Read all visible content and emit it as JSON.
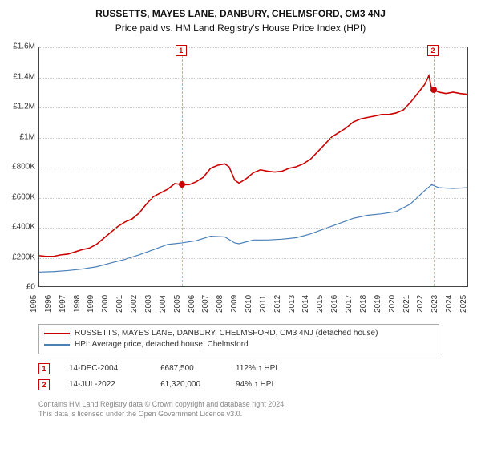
{
  "title": "RUSSETTS, MAYES LANE, DANBURY, CHELMSFORD, CM3 4NJ",
  "subtitle": "Price paid vs. HM Land Registry's House Price Index (HPI)",
  "chart": {
    "type": "line",
    "background_color": "#ffffff",
    "grid_color": "#cccccc",
    "axis_color": "#444444",
    "title_fontsize": 12,
    "label_fontsize": 10,
    "ylim": [
      0,
      1600000
    ],
    "ytick_step": 200000,
    "y_ticks": [
      "£0",
      "£200K",
      "£400K",
      "£600K",
      "£800K",
      "£1M",
      "£1.2M",
      "£1.4M",
      "£1.6M"
    ],
    "xlim": [
      1995,
      2025
    ],
    "x_ticks": [
      1995,
      1996,
      1997,
      1998,
      1999,
      2000,
      2001,
      2002,
      2003,
      2004,
      2005,
      2006,
      2007,
      2008,
      2009,
      2010,
      2011,
      2012,
      2013,
      2014,
      2015,
      2016,
      2017,
      2018,
      2019,
      2020,
      2021,
      2022,
      2023,
      2024,
      2025
    ],
    "series": [
      {
        "name": "subject",
        "label": "RUSSETTS, MAYES LANE, DANBURY, CHELMSFORD, CM3 4NJ (detached house)",
        "color": "#cc0000",
        "line_width": 1.6,
        "data": [
          [
            1995,
            205000
          ],
          [
            1995.5,
            200000
          ],
          [
            1996,
            200000
          ],
          [
            1996.5,
            210000
          ],
          [
            1997,
            215000
          ],
          [
            1997.5,
            230000
          ],
          [
            1998,
            245000
          ],
          [
            1998.5,
            255000
          ],
          [
            1999,
            280000
          ],
          [
            1999.5,
            320000
          ],
          [
            2000,
            360000
          ],
          [
            2000.5,
            400000
          ],
          [
            2001,
            430000
          ],
          [
            2001.5,
            450000
          ],
          [
            2002,
            490000
          ],
          [
            2002.5,
            550000
          ],
          [
            2003,
            600000
          ],
          [
            2003.5,
            625000
          ],
          [
            2004,
            650000
          ],
          [
            2004.5,
            687500
          ],
          [
            2005,
            680000
          ],
          [
            2005.5,
            680000
          ],
          [
            2006,
            700000
          ],
          [
            2006.5,
            730000
          ],
          [
            2007,
            790000
          ],
          [
            2007.5,
            810000
          ],
          [
            2008,
            820000
          ],
          [
            2008.3,
            800000
          ],
          [
            2008.7,
            710000
          ],
          [
            2009,
            690000
          ],
          [
            2009.5,
            720000
          ],
          [
            2010,
            760000
          ],
          [
            2010.5,
            780000
          ],
          [
            2011,
            770000
          ],
          [
            2011.5,
            765000
          ],
          [
            2012,
            770000
          ],
          [
            2012.5,
            790000
          ],
          [
            2013,
            800000
          ],
          [
            2013.5,
            820000
          ],
          [
            2014,
            850000
          ],
          [
            2014.5,
            900000
          ],
          [
            2015,
            950000
          ],
          [
            2015.5,
            1000000
          ],
          [
            2016,
            1030000
          ],
          [
            2016.5,
            1060000
          ],
          [
            2017,
            1100000
          ],
          [
            2017.5,
            1120000
          ],
          [
            2018,
            1130000
          ],
          [
            2018.5,
            1140000
          ],
          [
            2019,
            1150000
          ],
          [
            2019.5,
            1150000
          ],
          [
            2020,
            1160000
          ],
          [
            2020.5,
            1180000
          ],
          [
            2021,
            1230000
          ],
          [
            2021.5,
            1290000
          ],
          [
            2022,
            1350000
          ],
          [
            2022.3,
            1410000
          ],
          [
            2022.5,
            1320000
          ],
          [
            2023,
            1300000
          ],
          [
            2023.5,
            1290000
          ],
          [
            2024,
            1300000
          ],
          [
            2024.5,
            1290000
          ],
          [
            2025,
            1285000
          ]
        ]
      },
      {
        "name": "hpi",
        "label": "HPI: Average price, detached house, Chelmsford",
        "color": "#4a7fb8",
        "line_width": 1.2,
        "data": [
          [
            1995,
            95000
          ],
          [
            1996,
            98000
          ],
          [
            1997,
            105000
          ],
          [
            1998,
            115000
          ],
          [
            1999,
            130000
          ],
          [
            2000,
            155000
          ],
          [
            2001,
            180000
          ],
          [
            2002,
            210000
          ],
          [
            2003,
            245000
          ],
          [
            2004,
            280000
          ],
          [
            2005,
            290000
          ],
          [
            2006,
            305000
          ],
          [
            2007,
            335000
          ],
          [
            2008,
            330000
          ],
          [
            2008.7,
            290000
          ],
          [
            2009,
            285000
          ],
          [
            2010,
            310000
          ],
          [
            2011,
            310000
          ],
          [
            2012,
            315000
          ],
          [
            2013,
            325000
          ],
          [
            2014,
            350000
          ],
          [
            2015,
            385000
          ],
          [
            2016,
            420000
          ],
          [
            2017,
            455000
          ],
          [
            2018,
            475000
          ],
          [
            2019,
            485000
          ],
          [
            2020,
            500000
          ],
          [
            2021,
            550000
          ],
          [
            2022,
            640000
          ],
          [
            2022.5,
            680000
          ],
          [
            2023,
            660000
          ],
          [
            2024,
            655000
          ],
          [
            2025,
            660000
          ]
        ]
      }
    ],
    "sale_markers": [
      {
        "n": "1",
        "year": 2004.95,
        "value": 687500,
        "color": "#cc0000"
      },
      {
        "n": "2",
        "year": 2022.54,
        "value": 1320000,
        "color": "#cc0000"
      }
    ]
  },
  "legend": {
    "items": [
      {
        "color": "#cc0000",
        "label_path": "chart.series.0.label"
      },
      {
        "color": "#4a7fb8",
        "label_path": "chart.series.1.label"
      }
    ]
  },
  "sales": [
    {
      "n": "1",
      "date": "14-DEC-2004",
      "price": "£687,500",
      "pct": "112% ↑ HPI"
    },
    {
      "n": "2",
      "date": "14-JUL-2022",
      "price": "£1,320,000",
      "pct": "94% ↑ HPI"
    }
  ],
  "footer": {
    "line1": "Contains HM Land Registry data © Crown copyright and database right 2024.",
    "line2": "This data is licensed under the Open Government Licence v3.0."
  }
}
